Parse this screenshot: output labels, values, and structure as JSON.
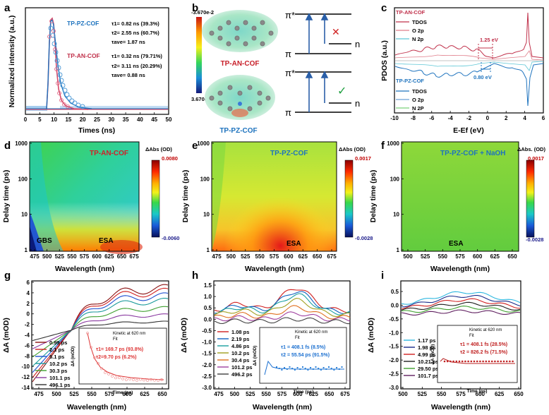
{
  "panel_letters": [
    "a",
    "b",
    "c",
    "d",
    "e",
    "f",
    "g",
    "h",
    "i"
  ],
  "chart_data": [
    {
      "panel": "a",
      "type": "line",
      "xlabel": "Times (ns)",
      "ylabel": "Normalized intensity (a.u.)",
      "xlim": [
        0,
        50
      ],
      "xticks": [
        "0",
        "5",
        "10",
        "15",
        "20",
        "25",
        "30",
        "35",
        "40",
        "45",
        "50"
      ],
      "annotations": [
        {
          "name": "TP-PZ-COF",
          "color": "#1e73be",
          "lines": [
            "τ1= 0.82 ns (39.3%)",
            "τ2= 2.55 ns (60.7%)",
            "τave= 1.87 ns"
          ]
        },
        {
          "name": "TP-AN-COF",
          "color": "#c0304a",
          "lines": [
            "τ1= 0.32 ns (79.71%)",
            "τ2= 3.11 ns (20.29%)",
            "τave= 0.88 ns"
          ]
        }
      ]
    },
    {
      "panel": "b",
      "type": "diagram",
      "colorbar_max": "-3.670e-2",
      "colorbar_min": "3.670e-2",
      "molecules": [
        "TP-AN-COF",
        "TP-PZ-COF"
      ],
      "levels": [
        "π*",
        "π",
        "n",
        "π*",
        "π",
        "n"
      ]
    },
    {
      "panel": "c",
      "type": "line",
      "xlabel": "E-Ef (eV)",
      "ylabel": "PDOS (a.u.)",
      "xlim": [
        -10,
        6
      ],
      "xticks": [
        "-10",
        "-8",
        "-6",
        "-4",
        "-2",
        "0",
        "2",
        "4",
        "6"
      ],
      "legend_top_title": "TP-AN-COF",
      "legend_top": [
        "TDOS",
        "O 2p",
        "N 2p"
      ],
      "legend_bottom_title": "TP-PZ-COF",
      "legend_bottom": [
        "TDOS",
        "O 2p",
        "N 2P"
      ],
      "gap_top": "1.25 eV",
      "gap_bottom": "0.80 eV"
    },
    {
      "panel": "d",
      "type": "heatmap",
      "title": "TP-AN-COF",
      "xlabel": "Wavelength (nm)",
      "ylabel": "Delay time (ps)",
      "xticks": [
        "475",
        "500",
        "525",
        "550",
        "575",
        "600",
        "625",
        "650",
        "675"
      ],
      "yticks": [
        "1",
        "10",
        "100",
        "1000"
      ],
      "cbar_title": "ΔAbs (OD)",
      "cbar_max": "0.0080",
      "cbar_min": "-0.0060",
      "labels": [
        "GBS",
        "ESA"
      ]
    },
    {
      "panel": "e",
      "type": "heatmap",
      "title": "TP-PZ-COF",
      "xlabel": "Wavelength (nm)",
      "ylabel": "Delay time (ps)",
      "xticks": [
        "475",
        "500",
        "525",
        "550",
        "575",
        "600",
        "625",
        "650",
        "675"
      ],
      "yticks": [
        "1",
        "10",
        "100",
        "1000"
      ],
      "cbar_title": "ΔAbs (OD)",
      "cbar_max": "0.0017",
      "cbar_min": "-0.0028",
      "labels": [
        "ESA"
      ]
    },
    {
      "panel": "f",
      "type": "heatmap",
      "title": "TP-PZ-COF + NaOH",
      "xlabel": "Wavelength (nm)",
      "ylabel": "Delay time (ps)",
      "xticks": [
        "500",
        "525",
        "550",
        "575",
        "600",
        "625",
        "650"
      ],
      "yticks": [
        "1",
        "10",
        "100",
        "1000"
      ],
      "cbar_title": "ΔAbs. (OD)",
      "cbar_max": "0.0017",
      "cbar_min": "-0.0028",
      "labels": [
        "ESA"
      ]
    },
    {
      "panel": "g",
      "type": "line",
      "xlabel": "Wavelength (nm)",
      "ylabel": "ΔA (mOD)",
      "xticks": [
        "475",
        "500",
        "525",
        "550",
        "575",
        "600",
        "625",
        "650"
      ],
      "yticks": [
        "-14",
        "-12",
        "-10",
        "-8",
        "-6",
        "-4",
        "-2",
        "0",
        "2",
        "4",
        "6"
      ],
      "legend": [
        "0.99 ps",
        "2.1 ps",
        "5.1 ps",
        "10.2 ps",
        "30.3 ps",
        "101.1 ps",
        "496.1 ps"
      ],
      "inset": {
        "legend": [
          "Kinetic at 620 nm",
          "Fit"
        ],
        "fit1": "τ1= 169.7 ps (93.8%)",
        "fit2": "τ2=9.70 ps  (6.2%)",
        "xlabel": "Time (ps)",
        "ylabel": "ΔA (mOD)",
        "xticks": [
          "0",
          "200",
          "400",
          "600",
          "800",
          "1000"
        ],
        "yticks": [
          "-5",
          "-4",
          "-3",
          "-2",
          "-1",
          "0",
          "1"
        ]
      }
    },
    {
      "panel": "h",
      "type": "line",
      "xlabel": "Wavelength (nm)",
      "ylabel": "ΔA (mOD)",
      "xticks": [
        "475",
        "500",
        "525",
        "550",
        "575",
        "600",
        "625",
        "650",
        "675"
      ],
      "yticks": [
        "-3.0",
        "-2.5",
        "-2.0",
        "-1.5",
        "-1.0",
        "-0.5",
        "0.0",
        "0.5",
        "1.0",
        "1.5"
      ],
      "legend": [
        "1.08 ps",
        "2.19 ps",
        "4.86 ps",
        "10.2 ps",
        "30.4 ps",
        "101.2 ps",
        "496.2 ps"
      ],
      "inset": {
        "legend": [
          "Kinetic at 620 nm",
          "Fit"
        ],
        "fit1": "τ1 = 408.1 fs (8.5%)",
        "fit2": "τ2 = 55.54 ps (91.5%)",
        "xlabel": "Time (ps)",
        "ylabel": "ΔA (mOD)",
        "xticks": [
          "0",
          "200",
          "400",
          "600",
          "800",
          "1000"
        ],
        "yticks": [
          "-3",
          "-2",
          "-1",
          "0",
          "1"
        ]
      }
    },
    {
      "panel": "i",
      "type": "line",
      "xlabel": "Wavelength (nm)",
      "ylabel": "ΔA (mOD)",
      "xticks": [
        "500",
        "525",
        "550",
        "575",
        "600",
        "625",
        "650"
      ],
      "yticks": [
        "-3.0",
        "-2.5",
        "-2.0",
        "-1.5",
        "-1.0",
        "-0.5",
        "0.0",
        "0.5"
      ],
      "legend": [
        "1.17 ps",
        "1.98 ps",
        "4.99 ps",
        "10.21 ps",
        "29.50 ps",
        "101.7 ps"
      ],
      "inset": {
        "legend": [
          "Kinetic at 620 nm",
          "Fit"
        ],
        "fit1": "τ1 = 408.1 fs (28.5%)",
        "fit2": "τ2 = 826.2 fs (71.5%)",
        "xlabel": "Time (ps)",
        "ylabel": "ΔA (mOD)",
        "xticks": [
          "0",
          "200",
          "400",
          "600",
          "800",
          "1000"
        ],
        "yticks": [
          "-1",
          "0",
          "1"
        ]
      }
    }
  ]
}
